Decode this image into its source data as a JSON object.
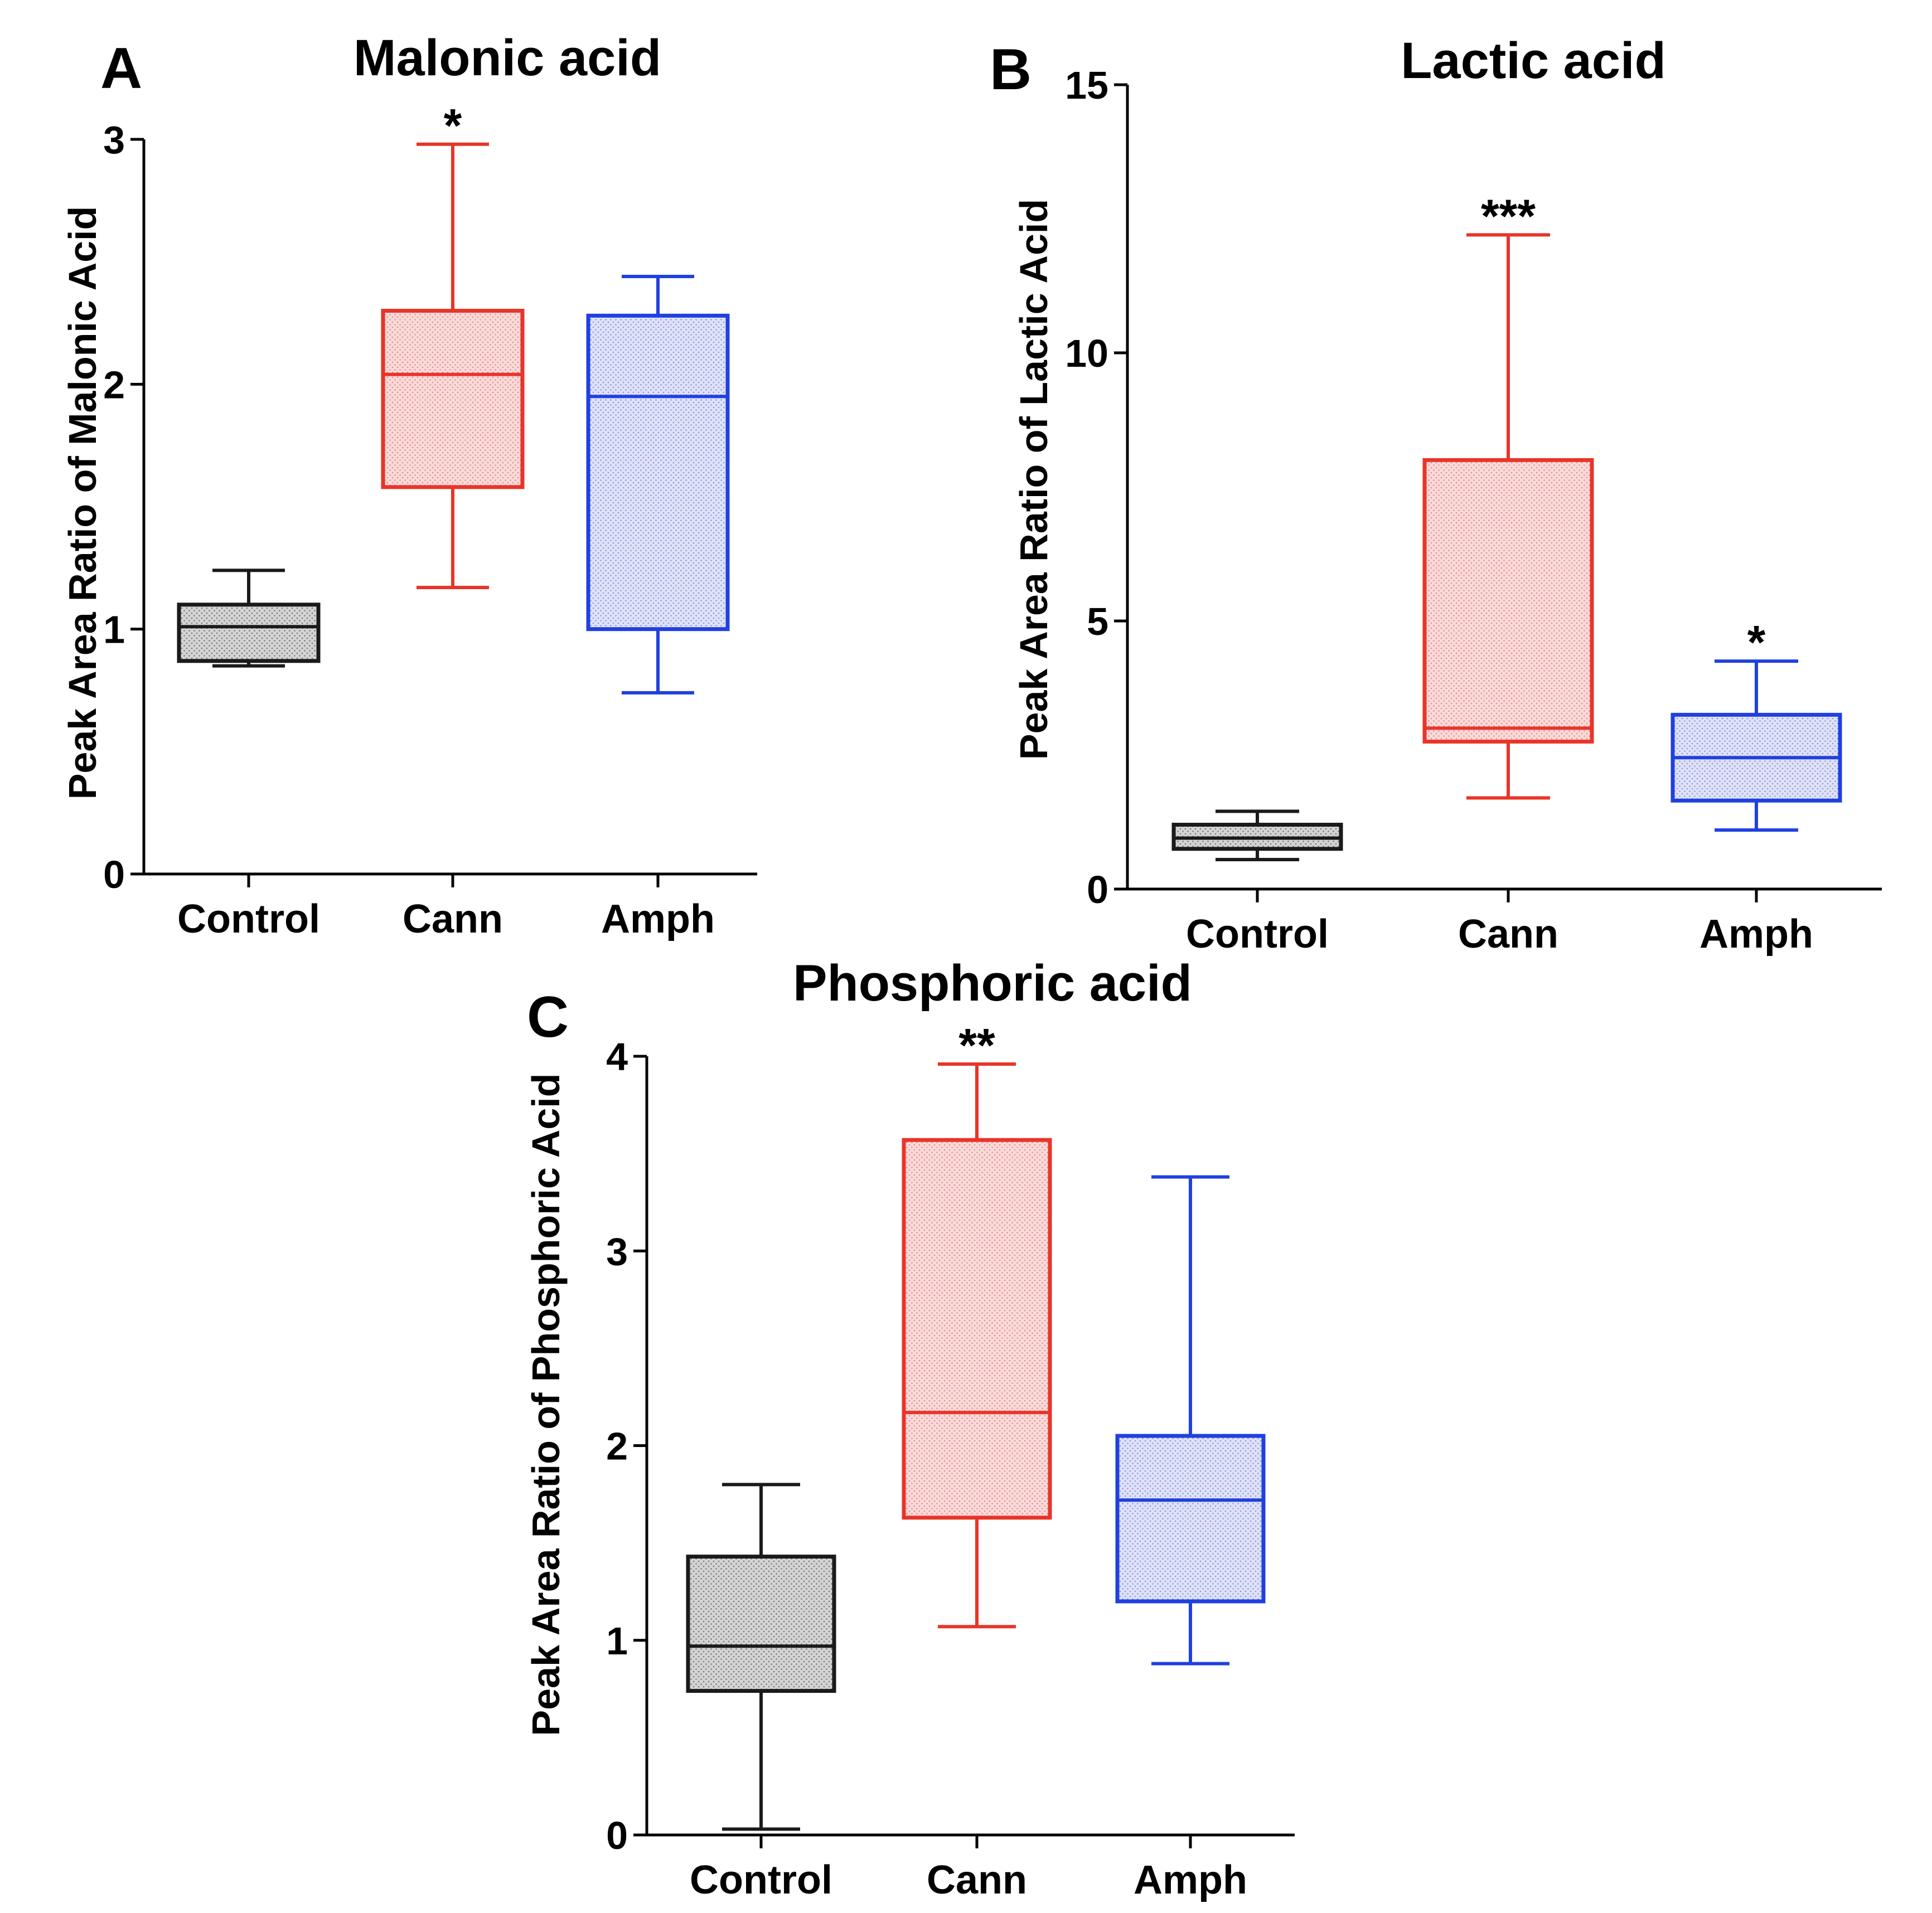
{
  "colors": {
    "control": "#1a1a1a",
    "cann": "#e8352a",
    "amph": "#2040e0",
    "control_fill": "#d9d9d9",
    "cann_fill": "#f8dede",
    "amph_fill": "#dfe3f7",
    "axis": "#000000"
  },
  "chart_data": [
    {
      "type": "box",
      "panel_label": "A",
      "title": "Malonic acid",
      "ylabel": "Peak Area Ratio of Malonic Acid",
      "xlabel": "",
      "ylim": [
        0,
        3
      ],
      "yticks": [
        0,
        1,
        2,
        3
      ],
      "grid": false,
      "categories": [
        "Control",
        "Cann",
        "Amph"
      ],
      "series": [
        {
          "min": 0.85,
          "q1": 0.87,
          "median": 1.01,
          "q3": 1.1,
          "max": 1.24,
          "significance": ""
        },
        {
          "min": 1.17,
          "q1": 1.58,
          "median": 2.04,
          "q3": 2.3,
          "max": 2.98,
          "significance": "*"
        },
        {
          "min": 0.74,
          "q1": 1.0,
          "median": 1.95,
          "q3": 2.28,
          "max": 2.44,
          "significance": ""
        }
      ]
    },
    {
      "type": "box",
      "panel_label": "B",
      "title": "Lactic acid",
      "ylabel": "Peak Area Ratio of Lactic Acid",
      "xlabel": "",
      "ylim": [
        0,
        15
      ],
      "yticks": [
        0,
        5,
        10,
        15
      ],
      "grid": false,
      "categories": [
        "Control",
        "Cann",
        "Amph"
      ],
      "series": [
        {
          "min": 0.55,
          "q1": 0.75,
          "median": 0.95,
          "q3": 1.2,
          "max": 1.45,
          "significance": ""
        },
        {
          "min": 1.7,
          "q1": 2.75,
          "median": 3.0,
          "q3": 8.0,
          "max": 12.2,
          "significance": "***"
        },
        {
          "min": 1.1,
          "q1": 1.65,
          "median": 2.45,
          "q3": 3.25,
          "max": 4.25,
          "significance": "*"
        }
      ]
    },
    {
      "type": "box",
      "panel_label": "C",
      "title": "Phosphoric acid",
      "ylabel": "Peak Area Ratio of Phosphoric Acid",
      "xlabel": "",
      "ylim": [
        0,
        4
      ],
      "yticks": [
        0,
        1,
        2,
        3,
        4
      ],
      "grid": false,
      "categories": [
        "Control",
        "Cann",
        "Amph"
      ],
      "series": [
        {
          "min": 0.03,
          "q1": 0.74,
          "median": 0.97,
          "q3": 1.43,
          "max": 1.8,
          "significance": ""
        },
        {
          "min": 1.07,
          "q1": 1.63,
          "median": 2.17,
          "q3": 3.57,
          "max": 3.96,
          "significance": "**"
        },
        {
          "min": 0.88,
          "q1": 1.2,
          "median": 1.72,
          "q3": 2.05,
          "max": 3.38,
          "significance": ""
        }
      ]
    }
  ]
}
